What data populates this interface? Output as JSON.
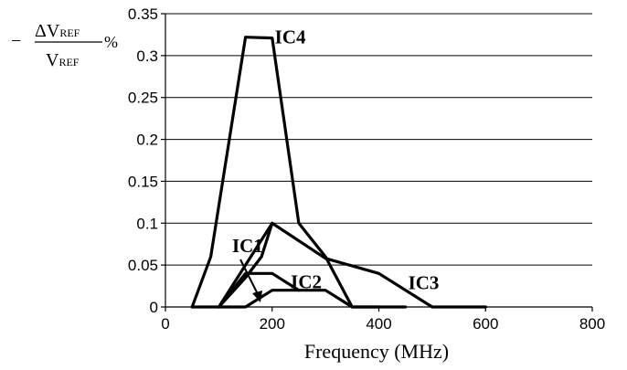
{
  "chart_data": {
    "type": "line",
    "title": "",
    "xlabel": "Frequency (MHz)",
    "ylabel": {
      "minus": "−",
      "numerator": "ΔV",
      "numerator_sub": "REF",
      "denominator": "V",
      "denominator_sub": "REF",
      "unit": "%"
    },
    "xlim": [
      0,
      800
    ],
    "ylim": [
      0,
      0.35
    ],
    "x_ticks": [
      "0",
      "200",
      "400",
      "600",
      "800"
    ],
    "y_ticks": [
      "0",
      "0.05",
      "0.1",
      "0.15",
      "0.2",
      "0.25",
      "0.3",
      "0.35"
    ],
    "grid": "horizontal",
    "series": [
      {
        "name": "IC4",
        "points": [
          [
            50,
            0
          ],
          [
            85,
            0.06
          ],
          [
            150,
            0.322
          ],
          [
            200,
            0.321
          ],
          [
            250,
            0.1
          ],
          [
            300,
            0.06
          ],
          [
            350,
            0
          ],
          [
            400,
            0
          ],
          [
            450,
            0
          ]
        ]
      },
      {
        "name": "IC3",
        "points": [
          [
            100,
            0
          ],
          [
            200,
            0.1
          ],
          [
            300,
            0.058
          ],
          [
            400,
            0.04
          ],
          [
            500,
            0
          ],
          [
            600,
            0
          ]
        ]
      },
      {
        "name": "IC1",
        "points": [
          [
            50,
            0
          ],
          [
            100,
            0
          ],
          [
            150,
            0.04
          ],
          [
            200,
            0.04
          ],
          [
            250,
            0.02
          ]
        ]
      },
      {
        "name": "IC2",
        "points": [
          [
            100,
            0
          ],
          [
            150,
            0
          ],
          [
            200,
            0.02
          ],
          [
            300,
            0.02
          ],
          [
            350,
            0
          ],
          [
            400,
            0
          ]
        ]
      },
      {
        "name": "",
        "points": [
          [
            100,
            0
          ],
          [
            150,
            0.035
          ],
          [
            180,
            0.06
          ],
          [
            200,
            0.1
          ]
        ]
      }
    ],
    "annotations": [
      {
        "text": "IC4",
        "x": 205,
        "y": 0.322
      },
      {
        "text": "IC1",
        "x": 125,
        "y": 0.073
      },
      {
        "text": "IC2",
        "x": 235,
        "y": 0.03
      },
      {
        "text": "IC3",
        "x": 455,
        "y": 0.029
      }
    ]
  }
}
